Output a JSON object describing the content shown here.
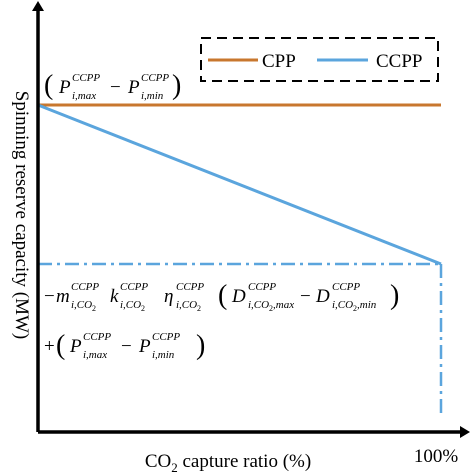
{
  "chart_data": {
    "type": "line",
    "xlabel": "CO2 capture ratio (%)",
    "xlabel_parts": {
      "pre": "CO",
      "sub": "2",
      "post": " capture ratio (%)"
    },
    "ylabel": "Spinning reserve capacity (MW)",
    "x_tick_labels": [
      "100%"
    ],
    "xlim": [
      0,
      100
    ],
    "grid": false,
    "legend_placement": "top-right",
    "legend_frame": "dashed",
    "colors": {
      "CPP": "#c8772e",
      "CCPP": "#5ba5dd"
    },
    "series": [
      {
        "name": "CPP",
        "x": [
          0,
          100
        ],
        "y": [
          1.0,
          1.0
        ]
      },
      {
        "name": "CCPP",
        "x": [
          0,
          100
        ],
        "y": [
          1.0,
          0.0
        ]
      }
    ],
    "reference_lines": [
      {
        "kind": "horizontal",
        "style": "dash-dot",
        "x": [
          0,
          100
        ],
        "y": 0.0
      },
      {
        "kind": "vertical",
        "style": "dash-dot",
        "x": 100,
        "y": [
          0.0,
          -0.95
        ]
      }
    ],
    "annotations": {
      "top_formula": "(P_{i,max}^{CCPP} − P_{i,min}^{CCPP})",
      "bottom_formula_line1": "−m_{i,CO2}^{CCPP} k_{i,CO2}^{CCPP} η_{i,CO2}^{CCPP} (D_{i,CO2,max}^{CCPP} − D_{i,CO2,min}^{CCPP})",
      "bottom_formula_line2": "+(P_{i,max}^{CCPP} − P_{i,min}^{CCPP})"
    },
    "formula_tokens": {
      "P": "P",
      "m": "m",
      "k": "k",
      "eta": "η",
      "D": "D",
      "ccpp": "CCPP",
      "i_max": "i,max",
      "i_min": "i,min",
      "i_co": "i,CO",
      "two": "2",
      "co_max": ",max",
      "co_min": ",min",
      "minus": "−",
      "plus": "+"
    }
  }
}
